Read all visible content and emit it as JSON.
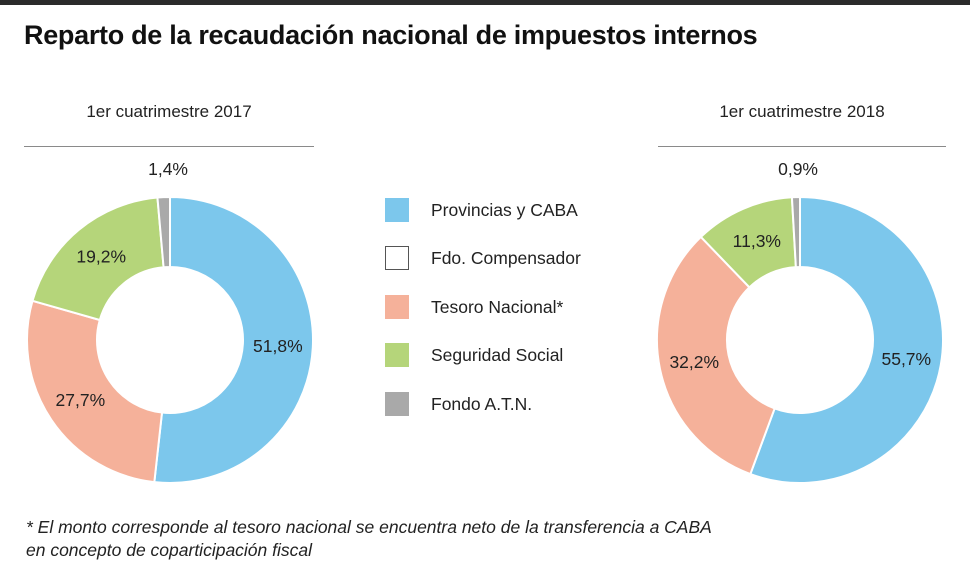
{
  "title": "Reparto de la recaudación nacional de impuestos internos",
  "colors": {
    "provincias": "#7cc7ec",
    "compensador": "#ffffff",
    "tesoro": "#f5b19a",
    "seguridad": "#b5d57a",
    "atn": "#a9a9a9"
  },
  "legend": [
    {
      "label": "Provincias y CABA",
      "color": "#7cc7ec"
    },
    {
      "label": "Fdo. Compensador",
      "color": "#ffffff"
    },
    {
      "label": "Tesoro Nacional*",
      "color": "#f5b19a"
    },
    {
      "label": "Seguridad Social",
      "color": "#b5d57a"
    },
    {
      "label": "Fondo A.T.N.",
      "color": "#a9a9a9"
    }
  ],
  "chart_data": [
    {
      "type": "pie",
      "title": "1er cuatrimestre 2017",
      "donut": true,
      "slices": [
        {
          "name": "Provincias y CABA",
          "value": 51.8,
          "label": "51,8%"
        },
        {
          "name": "Tesoro Nacional*",
          "value": 27.7,
          "label": "27,7%"
        },
        {
          "name": "Seguridad Social",
          "value": 19.2,
          "label": "19,2%"
        },
        {
          "name": "Fondo A.T.N.",
          "value": 1.4,
          "label": "1,4%"
        }
      ]
    },
    {
      "type": "pie",
      "title": "1er cuatrimestre 2018",
      "donut": true,
      "slices": [
        {
          "name": "Provincias y CABA",
          "value": 55.7,
          "label": "55,7%"
        },
        {
          "name": "Tesoro Nacional*",
          "value": 32.2,
          "label": "32,2%"
        },
        {
          "name": "Seguridad Social",
          "value": 11.3,
          "label": "11,3%"
        },
        {
          "name": "Fondo A.T.N.",
          "value": 0.9,
          "label": "0,9%"
        }
      ]
    }
  ],
  "footnote": "* El monto corresponde al tesoro nacional se encuentra neto de la transferencia a CABA",
  "footnote_2": "en concepto de coparticipación fiscal"
}
